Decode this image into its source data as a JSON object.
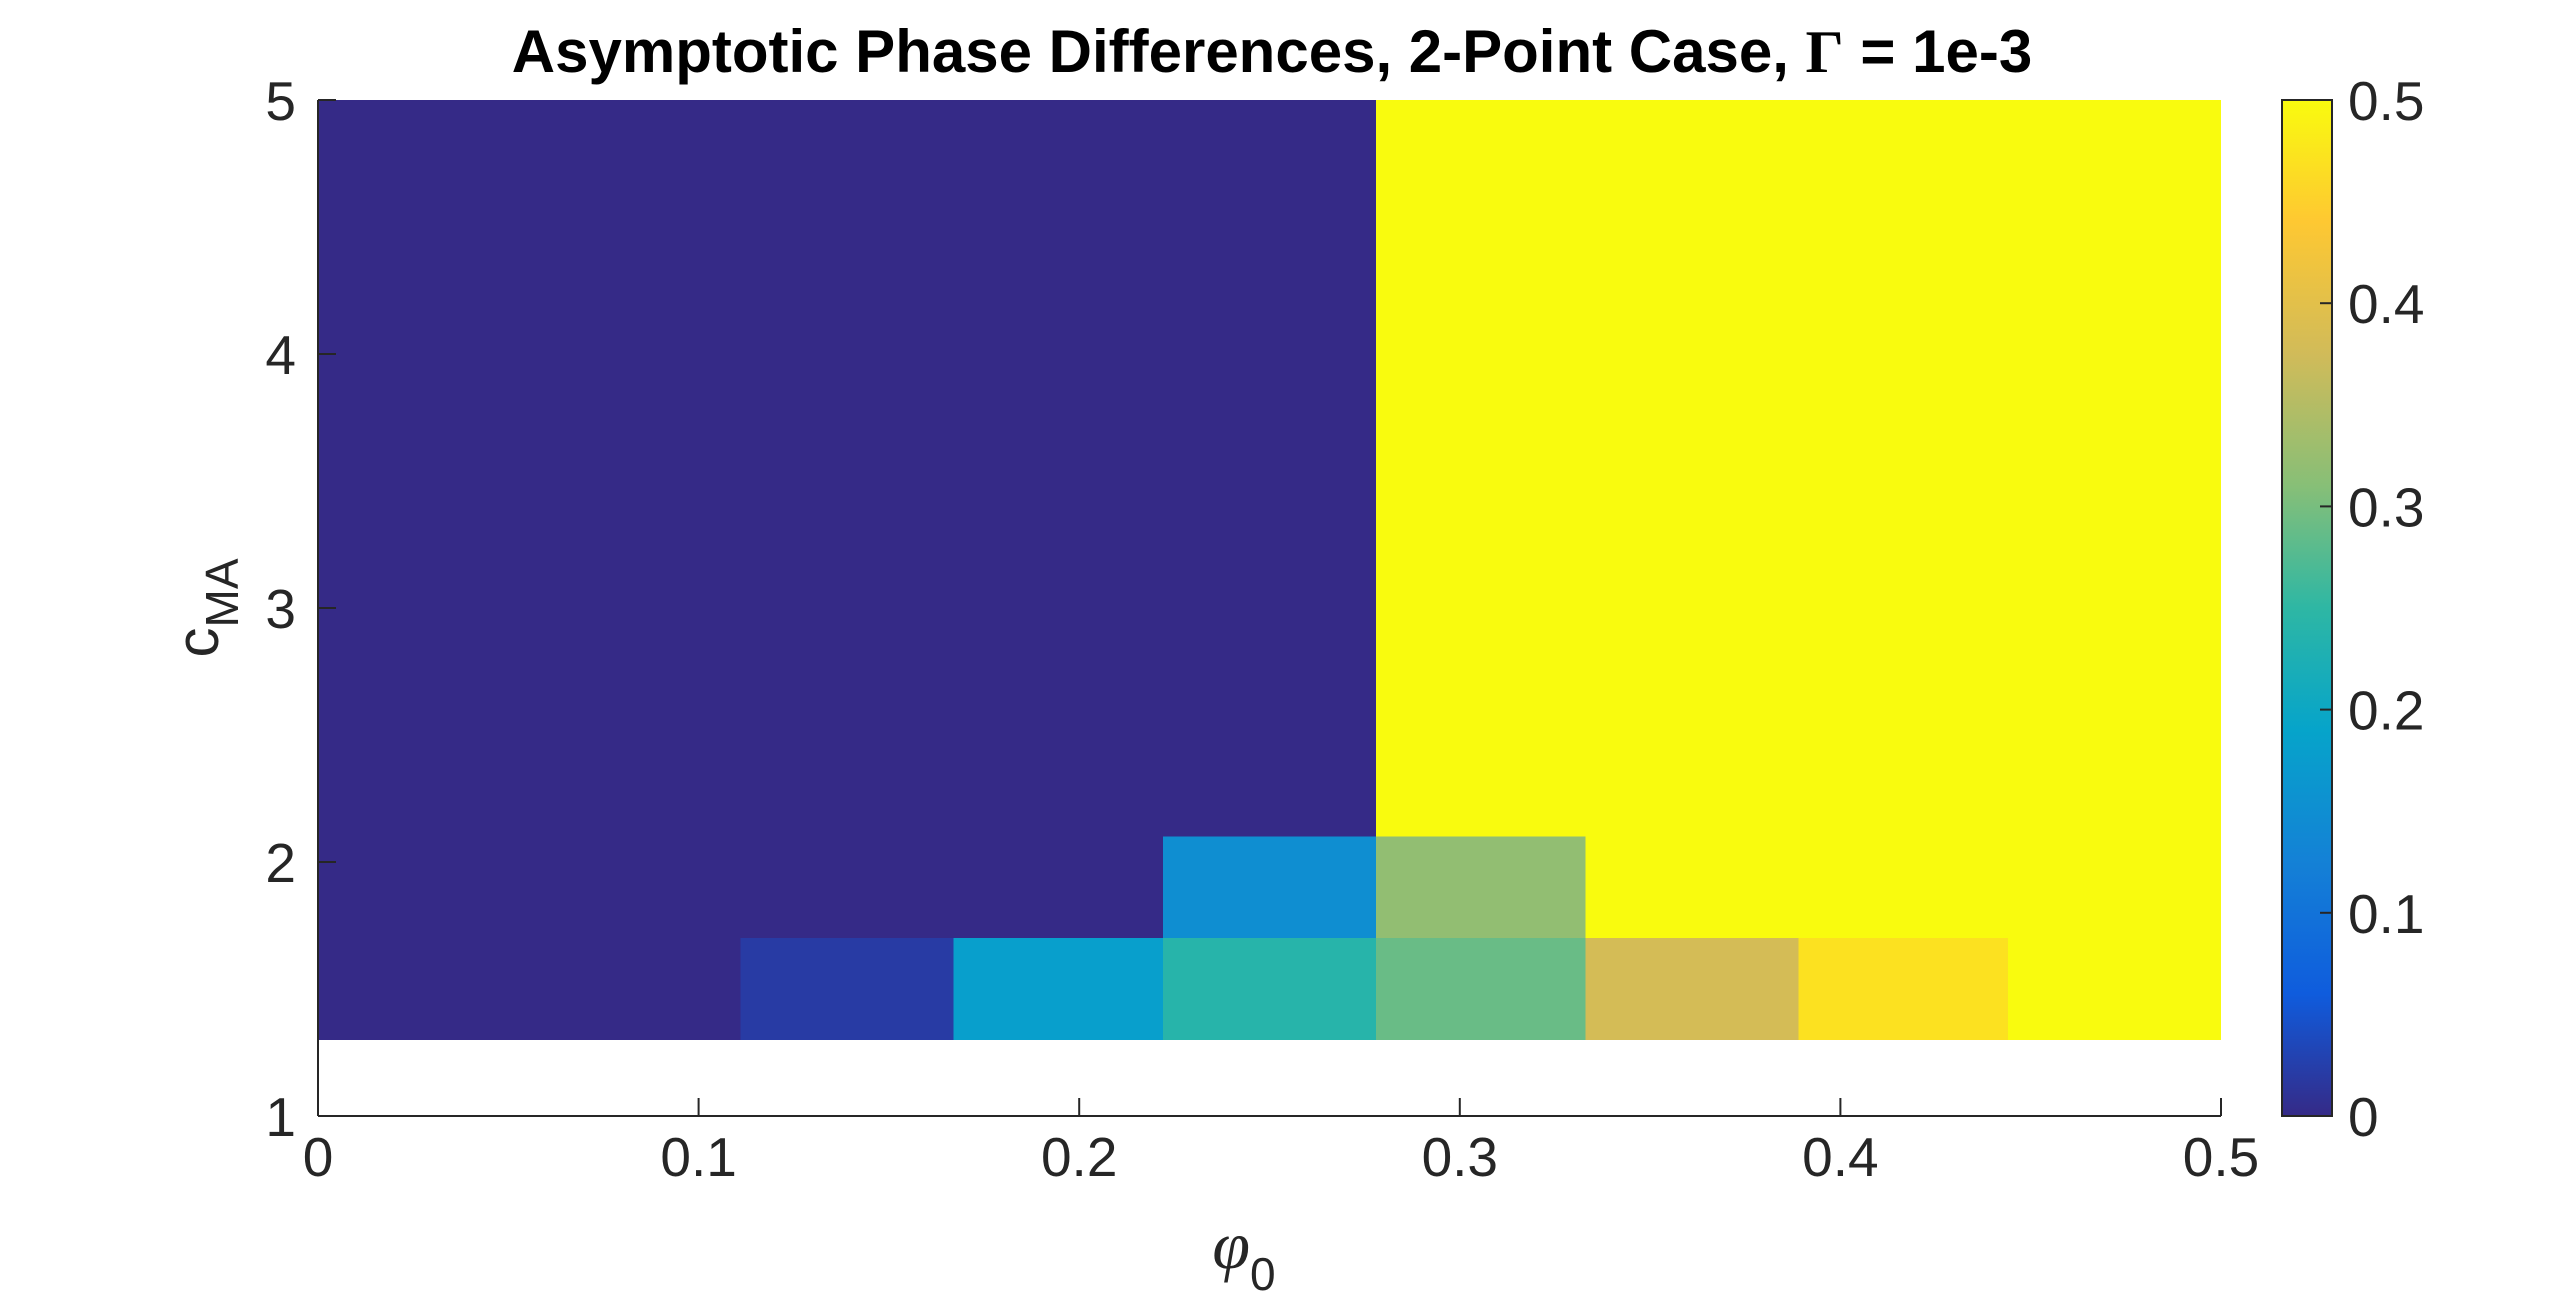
{
  "chart_data": {
    "type": "heatmap",
    "title": {
      "text": "Asymptotic Phase Differences, 2-Point Case, ",
      "symbol": "Γ",
      "suffix": " = 1e-3"
    },
    "xlabel": {
      "symbol": "φ",
      "subscript": "0"
    },
    "ylabel": {
      "base": "c",
      "subscript": "MA"
    },
    "xlim": [
      0,
      0.5
    ],
    "ylim": [
      1,
      5
    ],
    "xticks": [
      "0",
      "0.1",
      "0.2",
      "0.3",
      "0.4",
      "0.5"
    ],
    "yticks": [
      "1",
      "2",
      "3",
      "4",
      "5"
    ],
    "grid": false,
    "colormap": "parula",
    "colorbar": {
      "location": "right",
      "range": [
        0,
        0.5
      ],
      "ticks": [
        "0",
        "0.1",
        "0.2",
        "0.3",
        "0.4",
        "0.5"
      ]
    },
    "cells": [
      {
        "x": [
          0.0,
          0.278
        ],
        "y": [
          1.3,
          5.0
        ],
        "value": 0.0
      },
      {
        "x": [
          0.278,
          0.5
        ],
        "y": [
          1.3,
          5.0
        ],
        "value": 0.5
      },
      {
        "x": [
          0.222,
          0.278
        ],
        "y": [
          1.7,
          2.1
        ],
        "value": 0.15
      },
      {
        "x": [
          0.278,
          0.333
        ],
        "y": [
          1.7,
          2.1
        ],
        "value": 0.32
      },
      {
        "x": [
          0.111,
          0.167
        ],
        "y": [
          1.3,
          1.7
        ],
        "value": 0.02
      },
      {
        "x": [
          0.167,
          0.222
        ],
        "y": [
          1.3,
          1.7
        ],
        "value": 0.18
      },
      {
        "x": [
          0.222,
          0.278
        ],
        "y": [
          1.3,
          1.7
        ],
        "value": 0.24
      },
      {
        "x": [
          0.278,
          0.333
        ],
        "y": [
          1.3,
          1.7
        ],
        "value": 0.29
      },
      {
        "x": [
          0.333,
          0.389
        ],
        "y": [
          1.3,
          1.7
        ],
        "value": 0.38
      },
      {
        "x": [
          0.389,
          0.444
        ],
        "y": [
          1.3,
          1.7
        ],
        "value": 0.47
      }
    ]
  }
}
